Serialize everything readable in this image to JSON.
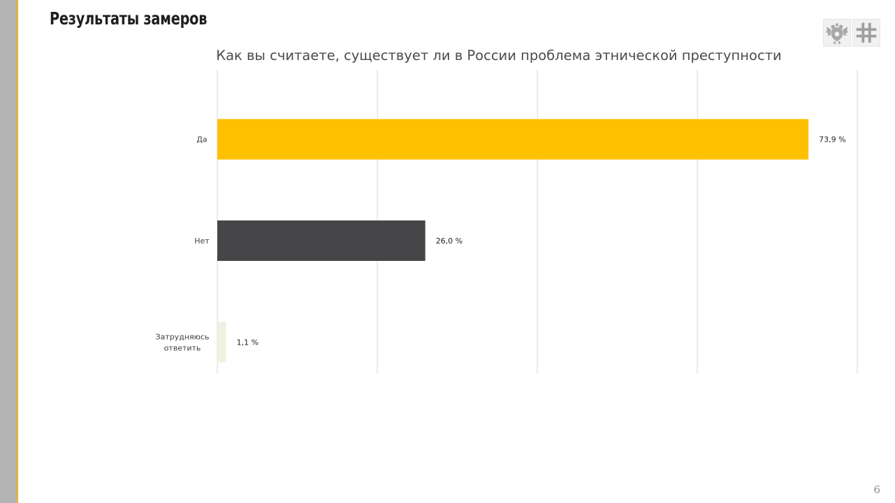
{
  "slide": {
    "title": "Результаты замеров",
    "page_number": "6"
  },
  "logos": [
    {
      "name": "coat-of-arms-icon",
      "icon": "double-headed-eagle"
    },
    {
      "name": "cross-emblem-icon",
      "icon": "cross-pattern"
    }
  ],
  "colors": {
    "accent": "#f2b316",
    "sidebar": "#b4b4b4",
    "gridline": "#d9d9d9"
  },
  "chart_data": {
    "type": "bar",
    "orientation": "horizontal",
    "title": "Как вы считаете, существует ли в России проблема этнической преступности",
    "categories": [
      "Да",
      "Нет",
      "Затрудняюсь ответить"
    ],
    "category_lines": [
      [
        "Да"
      ],
      [
        "Нет"
      ],
      [
        "Затрудняюсь",
        "ответить"
      ]
    ],
    "values": [
      73.9,
      26.0,
      1.1
    ],
    "value_labels": [
      "73,9 %",
      "26,0 %",
      "1,1 %"
    ],
    "bar_colors": [
      "#ffc000",
      "#464648",
      "#f2f0e2"
    ],
    "xlim": [
      0,
      80
    ],
    "grid": true,
    "xlabel": "",
    "ylabel": ""
  }
}
